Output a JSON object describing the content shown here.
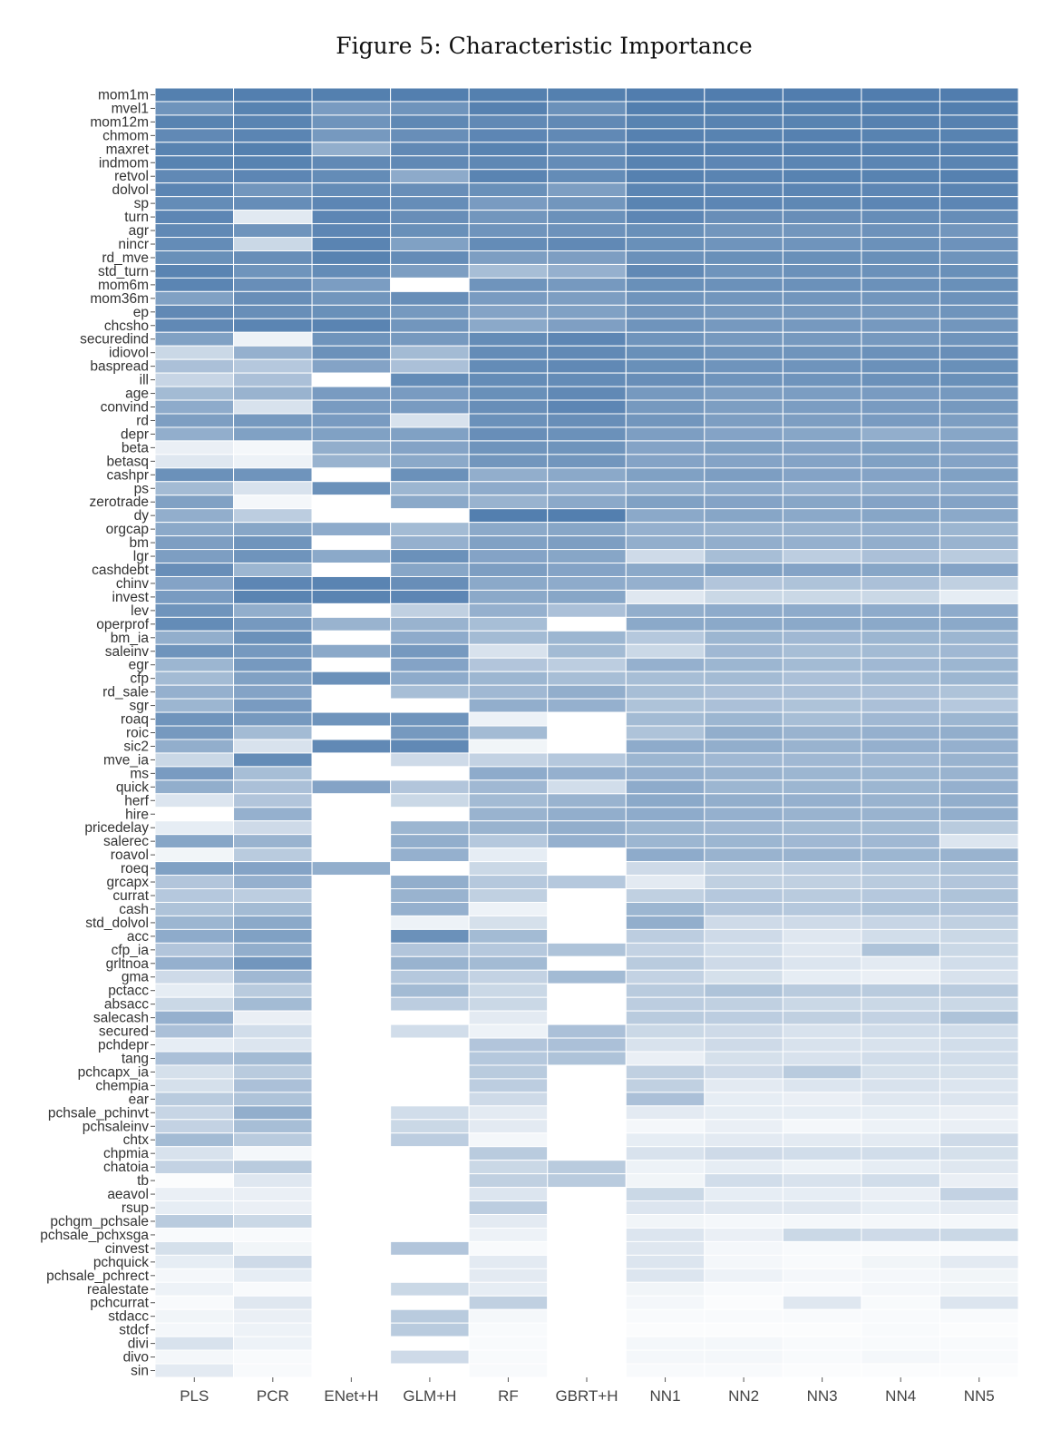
{
  "title": "Figure 5: Characteristic Importance",
  "chart_data": {
    "type": "heatmap",
    "title": "Figure 5: Characteristic Importance",
    "color_low": "#ffffff",
    "color_high": "#4f7cad",
    "grid": true,
    "columns": [
      "PLS",
      "PCR",
      "ENet+H",
      "GLM+H",
      "RF",
      "GBRT+H",
      "NN1",
      "NN2",
      "NN3",
      "NN4",
      "NN5"
    ],
    "rows": [
      "mom1m",
      "mvel1",
      "mom12m",
      "chmom",
      "maxret",
      "indmom",
      "retvol",
      "dolvol",
      "sp",
      "turn",
      "agr",
      "nincr",
      "rd_mve",
      "std_turn",
      "mom6m",
      "mom36m",
      "ep",
      "chcsho",
      "securedind",
      "idiovol",
      "baspread",
      "ill",
      "age",
      "convind",
      "rd",
      "depr",
      "beta",
      "betasq",
      "cashpr",
      "ps",
      "zerotrade",
      "dy",
      "orgcap",
      "bm",
      "lgr",
      "cashdebt",
      "chinv",
      "invest",
      "lev",
      "operprof",
      "bm_ia",
      "saleinv",
      "egr",
      "cfp",
      "rd_sale",
      "sgr",
      "roaq",
      "roic",
      "sic2",
      "mve_ia",
      "ms",
      "quick",
      "herf",
      "hire",
      "pricedelay",
      "salerec",
      "roavol",
      "roeq",
      "grcapx",
      "currat",
      "cash",
      "std_dolvol",
      "acc",
      "cfp_ia",
      "grltnoa",
      "gma",
      "pctacc",
      "absacc",
      "salecash",
      "secured",
      "pchdepr",
      "tang",
      "pchcapx_ia",
      "chempia",
      "ear",
      "pchsale_pchinvt",
      "pchsaleinv",
      "chtx",
      "chpmia",
      "chatoia",
      "tb",
      "aeavol",
      "rsup",
      "pchgm_pchsale",
      "pchsale_pchxsga",
      "cinvest",
      "pchquick",
      "pchsale_pchrect",
      "realestate",
      "pchcurrat",
      "stdacc",
      "stdcf",
      "divi",
      "divo",
      "sin"
    ],
    "values": [
      [
        0.97,
        0.98,
        0.97,
        0.98,
        0.97,
        0.97,
        0.99,
        0.99,
        0.99,
        0.99,
        0.99
      ],
      [
        0.82,
        0.95,
        0.76,
        0.82,
        0.96,
        0.84,
        0.98,
        0.97,
        0.97,
        0.98,
        0.98
      ],
      [
        0.95,
        0.94,
        0.82,
        0.91,
        0.9,
        0.9,
        0.95,
        0.95,
        0.95,
        0.96,
        0.96
      ],
      [
        0.9,
        0.93,
        0.78,
        0.86,
        0.92,
        0.9,
        0.96,
        0.95,
        0.96,
        0.95,
        0.95
      ],
      [
        0.95,
        0.97,
        0.62,
        0.9,
        0.95,
        0.88,
        0.96,
        0.96,
        0.96,
        0.96,
        0.96
      ],
      [
        0.95,
        0.95,
        0.9,
        0.9,
        0.91,
        0.88,
        0.95,
        0.92,
        0.93,
        0.93,
        0.94
      ],
      [
        0.9,
        0.92,
        0.88,
        0.65,
        0.94,
        0.88,
        0.96,
        0.94,
        0.95,
        0.95,
        0.96
      ],
      [
        0.93,
        0.8,
        0.88,
        0.86,
        0.85,
        0.74,
        0.93,
        0.92,
        0.93,
        0.92,
        0.94
      ],
      [
        0.88,
        0.87,
        0.92,
        0.87,
        0.76,
        0.8,
        0.94,
        0.92,
        0.91,
        0.92,
        0.92
      ],
      [
        0.92,
        0.17,
        0.92,
        0.86,
        0.8,
        0.84,
        0.92,
        0.86,
        0.86,
        0.87,
        0.87
      ],
      [
        0.9,
        0.82,
        0.92,
        0.85,
        0.82,
        0.83,
        0.85,
        0.8,
        0.8,
        0.83,
        0.8
      ],
      [
        0.88,
        0.3,
        0.94,
        0.72,
        0.88,
        0.9,
        0.85,
        0.82,
        0.82,
        0.84,
        0.83
      ],
      [
        0.85,
        0.86,
        0.95,
        0.88,
        0.74,
        0.74,
        0.84,
        0.85,
        0.85,
        0.85,
        0.82
      ],
      [
        0.94,
        0.82,
        0.88,
        0.74,
        0.5,
        0.6,
        0.9,
        0.82,
        0.84,
        0.84,
        0.85
      ],
      [
        0.93,
        0.86,
        0.75,
        0.0,
        0.82,
        0.78,
        0.85,
        0.84,
        0.84,
        0.84,
        0.85
      ],
      [
        0.72,
        0.86,
        0.8,
        0.86,
        0.76,
        0.74,
        0.82,
        0.8,
        0.8,
        0.8,
        0.83
      ],
      [
        0.9,
        0.86,
        0.85,
        0.78,
        0.7,
        0.72,
        0.8,
        0.78,
        0.78,
        0.78,
        0.82
      ],
      [
        0.9,
        0.93,
        0.94,
        0.8,
        0.66,
        0.73,
        0.82,
        0.78,
        0.78,
        0.78,
        0.8
      ],
      [
        0.72,
        0.1,
        0.82,
        0.78,
        0.88,
        0.92,
        0.82,
        0.78,
        0.78,
        0.78,
        0.82
      ],
      [
        0.3,
        0.6,
        0.84,
        0.52,
        0.88,
        0.9,
        0.85,
        0.82,
        0.82,
        0.84,
        0.86
      ],
      [
        0.48,
        0.42,
        0.7,
        0.48,
        0.88,
        0.9,
        0.85,
        0.82,
        0.82,
        0.84,
        0.85
      ],
      [
        0.32,
        0.48,
        0.0,
        0.88,
        0.88,
        0.88,
        0.86,
        0.82,
        0.82,
        0.84,
        0.85
      ],
      [
        0.52,
        0.58,
        0.76,
        0.76,
        0.85,
        0.9,
        0.78,
        0.74,
        0.75,
        0.76,
        0.78
      ],
      [
        0.64,
        0.22,
        0.76,
        0.76,
        0.86,
        0.92,
        0.78,
        0.74,
        0.75,
        0.76,
        0.78
      ],
      [
        0.74,
        0.78,
        0.76,
        0.22,
        0.84,
        0.86,
        0.8,
        0.74,
        0.74,
        0.76,
        0.74
      ],
      [
        0.62,
        0.72,
        0.72,
        0.72,
        0.86,
        0.84,
        0.74,
        0.7,
        0.68,
        0.62,
        0.68
      ],
      [
        0.12,
        0.06,
        0.62,
        0.7,
        0.82,
        0.82,
        0.7,
        0.72,
        0.7,
        0.72,
        0.7
      ],
      [
        0.18,
        0.1,
        0.58,
        0.66,
        0.8,
        0.8,
        0.7,
        0.7,
        0.7,
        0.72,
        0.7
      ],
      [
        0.84,
        0.82,
        0.0,
        0.84,
        0.62,
        0.66,
        0.72,
        0.74,
        0.7,
        0.7,
        0.72
      ],
      [
        0.52,
        0.22,
        0.84,
        0.56,
        0.64,
        0.6,
        0.62,
        0.64,
        0.6,
        0.62,
        0.64
      ],
      [
        0.72,
        0.06,
        0.0,
        0.66,
        0.58,
        0.66,
        0.72,
        0.7,
        0.68,
        0.7,
        0.7
      ],
      [
        0.62,
        0.38,
        0.0,
        0.0,
        0.98,
        0.98,
        0.66,
        0.68,
        0.66,
        0.68,
        0.66
      ],
      [
        0.66,
        0.68,
        0.64,
        0.52,
        0.66,
        0.68,
        0.6,
        0.58,
        0.58,
        0.6,
        0.56
      ],
      [
        0.74,
        0.82,
        0.0,
        0.6,
        0.72,
        0.74,
        0.62,
        0.62,
        0.6,
        0.62,
        0.58
      ],
      [
        0.74,
        0.82,
        0.66,
        0.84,
        0.7,
        0.68,
        0.28,
        0.5,
        0.38,
        0.48,
        0.4
      ],
      [
        0.86,
        0.56,
        0.0,
        0.68,
        0.74,
        0.7,
        0.66,
        0.72,
        0.7,
        0.68,
        0.7
      ],
      [
        0.7,
        0.92,
        0.94,
        0.86,
        0.66,
        0.64,
        0.6,
        0.44,
        0.46,
        0.48,
        0.36
      ],
      [
        0.76,
        0.94,
        0.94,
        0.92,
        0.66,
        0.68,
        0.18,
        0.3,
        0.3,
        0.3,
        0.14
      ],
      [
        0.82,
        0.62,
        0.0,
        0.36,
        0.6,
        0.48,
        0.62,
        0.64,
        0.64,
        0.64,
        0.64
      ],
      [
        0.88,
        0.78,
        0.58,
        0.58,
        0.5,
        0.0,
        0.66,
        0.66,
        0.66,
        0.66,
        0.66
      ],
      [
        0.62,
        0.84,
        0.0,
        0.64,
        0.52,
        0.56,
        0.42,
        0.56,
        0.54,
        0.56,
        0.56
      ],
      [
        0.82,
        0.78,
        0.66,
        0.78,
        0.22,
        0.52,
        0.3,
        0.54,
        0.5,
        0.52,
        0.54
      ],
      [
        0.56,
        0.78,
        0.0,
        0.7,
        0.44,
        0.38,
        0.6,
        0.56,
        0.52,
        0.54,
        0.56
      ],
      [
        0.52,
        0.72,
        0.84,
        0.64,
        0.56,
        0.5,
        0.5,
        0.52,
        0.48,
        0.52,
        0.56
      ],
      [
        0.6,
        0.7,
        0.0,
        0.5,
        0.54,
        0.62,
        0.5,
        0.48,
        0.48,
        0.48,
        0.46
      ],
      [
        0.56,
        0.76,
        0.0,
        0.0,
        0.62,
        0.6,
        0.46,
        0.48,
        0.46,
        0.48,
        0.42
      ],
      [
        0.82,
        0.78,
        0.82,
        0.82,
        0.1,
        0.0,
        0.52,
        0.56,
        0.5,
        0.54,
        0.56
      ],
      [
        0.78,
        0.52,
        0.0,
        0.78,
        0.52,
        0.0,
        0.46,
        0.62,
        0.58,
        0.6,
        0.62
      ],
      [
        0.62,
        0.22,
        0.9,
        0.9,
        0.08,
        0.0,
        0.64,
        0.62,
        0.58,
        0.6,
        0.6
      ],
      [
        0.3,
        0.88,
        0.0,
        0.28,
        0.34,
        0.42,
        0.56,
        0.54,
        0.54,
        0.54,
        0.58
      ],
      [
        0.76,
        0.5,
        0.0,
        0.0,
        0.64,
        0.6,
        0.6,
        0.58,
        0.56,
        0.56,
        0.58
      ],
      [
        0.62,
        0.48,
        0.7,
        0.44,
        0.54,
        0.26,
        0.64,
        0.56,
        0.56,
        0.56,
        0.6
      ],
      [
        0.2,
        0.44,
        0.0,
        0.3,
        0.52,
        0.58,
        0.66,
        0.62,
        0.6,
        0.58,
        0.62
      ],
      [
        0.0,
        0.6,
        0.0,
        0.0,
        0.58,
        0.62,
        0.64,
        0.6,
        0.58,
        0.58,
        0.62
      ],
      [
        0.14,
        0.28,
        0.0,
        0.56,
        0.58,
        0.62,
        0.56,
        0.54,
        0.52,
        0.52,
        0.4
      ],
      [
        0.68,
        0.58,
        0.0,
        0.62,
        0.42,
        0.6,
        0.56,
        0.56,
        0.54,
        0.54,
        0.2
      ],
      [
        0.08,
        0.4,
        0.0,
        0.6,
        0.14,
        0.0,
        0.64,
        0.58,
        0.58,
        0.56,
        0.58
      ],
      [
        0.72,
        0.7,
        0.62,
        0.0,
        0.3,
        0.0,
        0.28,
        0.36,
        0.38,
        0.42,
        0.46
      ],
      [
        0.44,
        0.6,
        0.0,
        0.62,
        0.42,
        0.42,
        0.16,
        0.36,
        0.36,
        0.4,
        0.44
      ],
      [
        0.42,
        0.38,
        0.0,
        0.58,
        0.36,
        0.0,
        0.36,
        0.42,
        0.4,
        0.42,
        0.46
      ],
      [
        0.46,
        0.52,
        0.0,
        0.6,
        0.1,
        0.0,
        0.56,
        0.44,
        0.42,
        0.46,
        0.44
      ],
      [
        0.56,
        0.66,
        0.0,
        0.1,
        0.24,
        0.0,
        0.62,
        0.28,
        0.28,
        0.32,
        0.36
      ],
      [
        0.64,
        0.72,
        0.0,
        0.84,
        0.52,
        0.0,
        0.38,
        0.28,
        0.18,
        0.26,
        0.3
      ],
      [
        0.44,
        0.62,
        0.0,
        0.44,
        0.42,
        0.46,
        0.34,
        0.26,
        0.18,
        0.46,
        0.3
      ],
      [
        0.6,
        0.8,
        0.0,
        0.58,
        0.52,
        0.0,
        0.4,
        0.28,
        0.2,
        0.16,
        0.26
      ],
      [
        0.28,
        0.54,
        0.0,
        0.42,
        0.34,
        0.52,
        0.34,
        0.24,
        0.14,
        0.12,
        0.22
      ],
      [
        0.14,
        0.4,
        0.0,
        0.52,
        0.3,
        0.0,
        0.4,
        0.46,
        0.4,
        0.4,
        0.4
      ],
      [
        0.3,
        0.52,
        0.0,
        0.38,
        0.3,
        0.0,
        0.38,
        0.36,
        0.3,
        0.3,
        0.3
      ],
      [
        0.6,
        0.12,
        0.0,
        0.0,
        0.16,
        0.0,
        0.4,
        0.38,
        0.36,
        0.34,
        0.46
      ],
      [
        0.48,
        0.26,
        0.0,
        0.26,
        0.1,
        0.48,
        0.3,
        0.28,
        0.22,
        0.26,
        0.26
      ],
      [
        0.14,
        0.2,
        0.0,
        0.0,
        0.44,
        0.48,
        0.22,
        0.28,
        0.22,
        0.22,
        0.26
      ],
      [
        0.48,
        0.52,
        0.0,
        0.0,
        0.42,
        0.46,
        0.12,
        0.24,
        0.22,
        0.26,
        0.26
      ],
      [
        0.24,
        0.4,
        0.0,
        0.0,
        0.4,
        0.0,
        0.36,
        0.28,
        0.4,
        0.24,
        0.24
      ],
      [
        0.24,
        0.48,
        0.0,
        0.0,
        0.38,
        0.0,
        0.36,
        0.16,
        0.2,
        0.22,
        0.2
      ],
      [
        0.4,
        0.46,
        0.0,
        0.0,
        0.28,
        0.0,
        0.48,
        0.14,
        0.12,
        0.18,
        0.2
      ],
      [
        0.32,
        0.62,
        0.0,
        0.26,
        0.16,
        0.0,
        0.16,
        0.14,
        0.14,
        0.14,
        0.12
      ],
      [
        0.34,
        0.5,
        0.0,
        0.3,
        0.16,
        0.0,
        0.06,
        0.12,
        0.06,
        0.1,
        0.12
      ],
      [
        0.52,
        0.4,
        0.0,
        0.38,
        0.06,
        0.0,
        0.14,
        0.16,
        0.16,
        0.16,
        0.28
      ],
      [
        0.22,
        0.06,
        0.0,
        0.0,
        0.4,
        0.0,
        0.22,
        0.28,
        0.26,
        0.26,
        0.24
      ],
      [
        0.34,
        0.4,
        0.0,
        0.0,
        0.3,
        0.4,
        0.1,
        0.14,
        0.1,
        0.14,
        0.18
      ],
      [
        0.02,
        0.18,
        0.0,
        0.0,
        0.36,
        0.4,
        0.08,
        0.26,
        0.22,
        0.26,
        0.12
      ],
      [
        0.12,
        0.12,
        0.0,
        0.0,
        0.2,
        0.0,
        0.3,
        0.14,
        0.14,
        0.12,
        0.34
      ],
      [
        0.14,
        0.12,
        0.0,
        0.0,
        0.38,
        0.0,
        0.2,
        0.18,
        0.18,
        0.14,
        0.16
      ],
      [
        0.4,
        0.3,
        0.0,
        0.0,
        0.16,
        0.0,
        0.08,
        0.06,
        0.06,
        0.06,
        0.06
      ],
      [
        0.04,
        0.04,
        0.0,
        0.0,
        0.1,
        0.0,
        0.2,
        0.12,
        0.3,
        0.28,
        0.3
      ],
      [
        0.24,
        0.08,
        0.0,
        0.44,
        0.04,
        0.0,
        0.18,
        0.06,
        0.04,
        0.04,
        0.04
      ],
      [
        0.14,
        0.28,
        0.0,
        0.0,
        0.16,
        0.0,
        0.2,
        0.06,
        0.04,
        0.08,
        0.16
      ],
      [
        0.06,
        0.14,
        0.0,
        0.0,
        0.16,
        0.0,
        0.2,
        0.1,
        0.06,
        0.06,
        0.08
      ],
      [
        0.1,
        0.04,
        0.0,
        0.3,
        0.14,
        0.0,
        0.08,
        0.04,
        0.04,
        0.06,
        0.08
      ],
      [
        0.04,
        0.18,
        0.0,
        0.0,
        0.36,
        0.0,
        0.06,
        0.02,
        0.18,
        0.04,
        0.2
      ],
      [
        0.08,
        0.12,
        0.0,
        0.4,
        0.06,
        0.0,
        0.04,
        0.04,
        0.04,
        0.04,
        0.04
      ],
      [
        0.06,
        0.1,
        0.0,
        0.4,
        0.04,
        0.0,
        0.02,
        0.02,
        0.02,
        0.04,
        0.02
      ],
      [
        0.22,
        0.1,
        0.0,
        0.0,
        0.04,
        0.0,
        0.06,
        0.06,
        0.04,
        0.04,
        0.04
      ],
      [
        0.06,
        0.04,
        0.0,
        0.28,
        0.04,
        0.0,
        0.06,
        0.06,
        0.04,
        0.06,
        0.04
      ],
      [
        0.16,
        0.04,
        0.0,
        0.0,
        0.04,
        0.0,
        0.04,
        0.04,
        0.02,
        0.02,
        0.02
      ]
    ]
  }
}
